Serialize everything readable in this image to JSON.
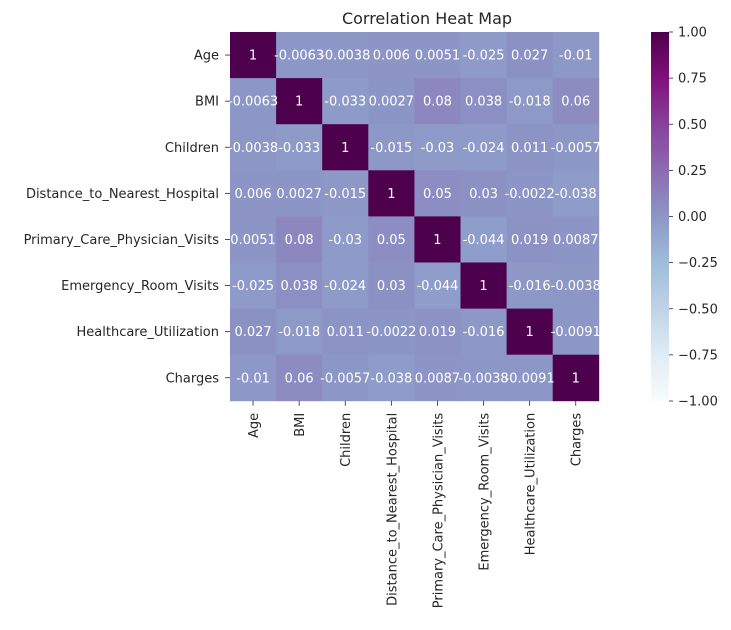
{
  "chart_data": {
    "type": "heatmap",
    "title": "Correlation Heat Map",
    "xlabel": "",
    "ylabel": "",
    "row_labels": [
      "Age",
      "BMI",
      "Children",
      "Distance_to_Nearest_Hospital",
      "Primary_Care_Physician_Visits",
      "Emergency_Room_Visits",
      "Healthcare_Utilization",
      "Charges"
    ],
    "col_labels": [
      "Age",
      "BMI",
      "Children",
      "Distance_to_Nearest_Hospital",
      "Primary_Care_Physician_Visits",
      "Emergency_Room_Visits",
      "Healthcare_Utilization",
      "Charges"
    ],
    "values": [
      [
        1,
        -0.0063,
        -0.0038,
        0.006,
        0.0051,
        -0.025,
        0.027,
        -0.01
      ],
      [
        -0.0063,
        1,
        -0.033,
        0.0027,
        0.08,
        0.038,
        -0.018,
        0.06
      ],
      [
        -0.0038,
        -0.033,
        1,
        -0.015,
        -0.03,
        -0.024,
        0.011,
        -0.0057
      ],
      [
        0.006,
        0.0027,
        -0.015,
        1,
        0.05,
        0.03,
        -0.0022,
        -0.038
      ],
      [
        0.0051,
        0.08,
        -0.03,
        0.05,
        1,
        -0.044,
        0.019,
        0.0087
      ],
      [
        -0.025,
        0.038,
        -0.024,
        0.03,
        -0.044,
        1,
        -0.016,
        -0.0038
      ],
      [
        0.027,
        -0.018,
        0.011,
        -0.0022,
        0.019,
        -0.016,
        1,
        -0.0091
      ],
      [
        -0.01,
        0.06,
        -0.0057,
        -0.038,
        0.0087,
        -0.0038,
        -0.0091,
        1
      ]
    ],
    "annotations": [
      [
        "1",
        "-0.0063",
        "-0.0038",
        "0.006",
        "0.0051",
        "-0.025",
        "0.027",
        "-0.01"
      ],
      [
        "-0.0063",
        "1",
        "-0.033",
        "0.0027",
        "0.08",
        "0.038",
        "-0.018",
        "0.06"
      ],
      [
        "-0.0038",
        "-0.033",
        "1",
        "-0.015",
        "-0.03",
        "-0.024",
        "0.011",
        "-0.0057"
      ],
      [
        "0.006",
        "0.0027",
        "-0.015",
        "1",
        "0.05",
        "0.03",
        "-0.0022",
        "-0.038"
      ],
      [
        "0.0051",
        "0.08",
        "-0.03",
        "0.05",
        "1",
        "-0.044",
        "0.019",
        "0.0087"
      ],
      [
        "-0.025",
        "0.038",
        "-0.024",
        "0.03",
        "-0.044",
        "1",
        "-0.016",
        "-0.0038"
      ],
      [
        "0.027",
        "-0.018",
        "0.011",
        "-0.0022",
        "0.019",
        "-0.016",
        "1",
        "-0.0091"
      ],
      [
        "-0.01",
        "0.06",
        "-0.0057",
        "-0.038",
        "0.0087",
        "-0.0038",
        "-0.0091",
        "1"
      ]
    ],
    "colormap": "BuPu",
    "vmin": -1,
    "vmax": 1,
    "colorbar_ticks": [
      1.0,
      0.75,
      0.5,
      0.25,
      0.0,
      -0.25,
      -0.5,
      -0.75,
      -1.0
    ],
    "colorbar_tick_labels": [
      "1.00",
      "0.75",
      "0.50",
      "0.25",
      "0.00",
      "−0.25",
      "−0.50",
      "−0.75",
      "−1.00"
    ],
    "colors": {
      "text_dark": "#262626",
      "annotation_text": "#ffffff"
    }
  }
}
